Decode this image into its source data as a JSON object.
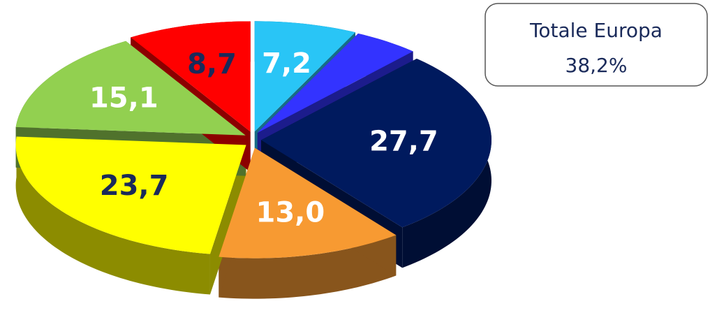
{
  "chart_data": {
    "type": "pie",
    "values": [
      7.2,
      4.6,
      27.7,
      13.0,
      23.7,
      15.1,
      8.7
    ],
    "value_labels": [
      "7,2",
      null,
      "27,7",
      "13,0",
      "23,7",
      "15,1",
      "8,7"
    ],
    "colors": [
      "#29c5f6",
      "#3333ff",
      "#001a5e",
      "#f79a32",
      "#ffff00",
      "#92d050",
      "#ff0000"
    ],
    "label_colors": [
      "#ffffff",
      "#ffffff",
      "#ffffff",
      "#ffffff",
      "#1a2a5a",
      "#ffffff",
      "#1a2a5a"
    ],
    "annotation": [
      "Totale Europa",
      "38,2%"
    ]
  }
}
